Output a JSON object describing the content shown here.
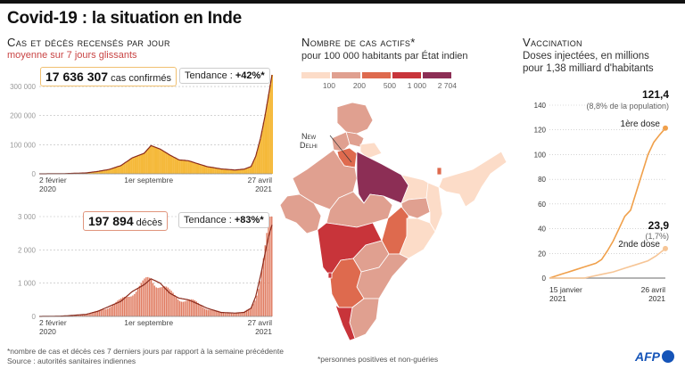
{
  "title": "Covid-19 : la situation en Inde",
  "left_section": {
    "title": "Cas et décès recensés par jour",
    "subtitle": "moyenne sur 7 jours glissants",
    "footnote": "*nombre de cas et décès ces 7 derniers jours par rapport à la semaine précédente",
    "source": "Source : autorités sanitaires indiennes"
  },
  "map_section": {
    "title": "Nombre de cas actifs*",
    "subtitle": "pour 100 000 habitants par État indien",
    "footnote": "*personnes positives et non-guéries",
    "capital_label_1": "New",
    "capital_label_2": "Delhi",
    "legend": [
      {
        "label": "100",
        "color": "#fcdcc8"
      },
      {
        "label": "200",
        "color": "#e0a090"
      },
      {
        "label": "500",
        "color": "#de6a4e"
      },
      {
        "label": "1 000",
        "color": "#c8343a"
      },
      {
        "label": "2 704",
        "color": "#8c2e55"
      }
    ]
  },
  "vaccination_section": {
    "title": "Vaccination",
    "subtitle_1": "Doses injectées, en millions",
    "subtitle_2": "pour 1,38 milliard d'habitants"
  },
  "credit": "AFP",
  "chart_data": [
    {
      "type": "area",
      "title": "Cas confirmés par jour (moyenne 7 jours)",
      "total_label": "17 636 307",
      "total_suffix": "cas confirmés",
      "trend_label": "Tendance : ",
      "trend_value": "+42%*",
      "color": "#f5b93a",
      "line_color": "#8a2a1c",
      "ylim": [
        0,
        340000
      ],
      "yticks": [
        0,
        100000,
        200000,
        300000
      ],
      "ytick_labels": [
        "0",
        "100 000",
        "200 000",
        "300 000"
      ],
      "xticks": [
        {
          "label1": "2 février",
          "label2": "2020",
          "pos": 0
        },
        {
          "label1": "1er septembre",
          "label2": "",
          "pos": 0.47
        },
        {
          "label1": "27 avril",
          "label2": "2021",
          "pos": 1
        }
      ],
      "x": [
        0,
        0.1,
        0.2,
        0.25,
        0.3,
        0.35,
        0.4,
        0.45,
        0.48,
        0.52,
        0.56,
        0.6,
        0.64,
        0.68,
        0.72,
        0.78,
        0.84,
        0.88,
        0.91,
        0.93,
        0.95,
        0.97,
        0.985,
        1
      ],
      "values": [
        0,
        500,
        3000,
        8000,
        15000,
        28000,
        55000,
        70000,
        97000,
        85000,
        65000,
        48000,
        45000,
        35000,
        25000,
        17000,
        13000,
        16000,
        25000,
        60000,
        120000,
        200000,
        270000,
        340000
      ]
    },
    {
      "type": "bar",
      "title": "Décès par jour (moyenne 7 jours)",
      "total_label": "197 894",
      "total_suffix": "décès",
      "trend_label": "Tendance : ",
      "trend_value": "+83%*",
      "color": "#e07a5f",
      "line_color": "#8a2a1c",
      "ylim": [
        0,
        3000
      ],
      "yticks": [
        0,
        1000,
        2000,
        3000
      ],
      "ytick_labels": [
        "0",
        "1 000",
        "2 000",
        "3 000"
      ],
      "xticks": [
        {
          "label1": "2 février",
          "label2": "2020",
          "pos": 0
        },
        {
          "label1": "1er septembre",
          "label2": "",
          "pos": 0.47
        },
        {
          "label1": "27 avril",
          "label2": "2021",
          "pos": 1
        }
      ],
      "x": [
        0,
        0.1,
        0.2,
        0.25,
        0.3,
        0.35,
        0.4,
        0.45,
        0.48,
        0.52,
        0.56,
        0.6,
        0.64,
        0.68,
        0.72,
        0.78,
        0.84,
        0.88,
        0.91,
        0.93,
        0.95,
        0.97,
        0.985,
        1
      ],
      "values": [
        0,
        10,
        60,
        150,
        300,
        450,
        750,
        950,
        1130,
        1000,
        700,
        550,
        500,
        380,
        250,
        120,
        100,
        120,
        250,
        600,
        1200,
        1900,
        2400,
        2750
      ]
    },
    {
      "type": "line",
      "title": "Vaccination — doses injectées (millions)",
      "ylim": [
        0,
        140
      ],
      "yticks": [
        0,
        20,
        40,
        60,
        80,
        100,
        120,
        140
      ],
      "xticks": [
        {
          "label1": "15 janvier",
          "label2": "2021",
          "pos": 0
        },
        {
          "label1": "26 avril",
          "label2": "2021",
          "pos": 1
        }
      ],
      "series": [
        {
          "name": "1ère dose",
          "color": "#f0a04b",
          "end_value": "121,4",
          "end_note": "(8,8% de la population)",
          "x": [
            0,
            0.1,
            0.2,
            0.3,
            0.4,
            0.45,
            0.5,
            0.55,
            0.6,
            0.65,
            0.7,
            0.75,
            0.8,
            0.85,
            0.9,
            0.95,
            1
          ],
          "values": [
            0,
            3,
            6,
            9,
            12,
            15,
            22,
            30,
            40,
            50,
            55,
            70,
            85,
            100,
            110,
            116,
            121.4
          ]
        },
        {
          "name": "2nde dose",
          "color": "#f6c596",
          "end_value": "23,9",
          "end_note": "(1,7%)",
          "x": [
            0,
            0.3,
            0.35,
            0.45,
            0.55,
            0.65,
            0.75,
            0.85,
            0.92,
            1
          ],
          "values": [
            0,
            0,
            1,
            3,
            5,
            8,
            11,
            14,
            18,
            23.9
          ]
        }
      ]
    }
  ]
}
